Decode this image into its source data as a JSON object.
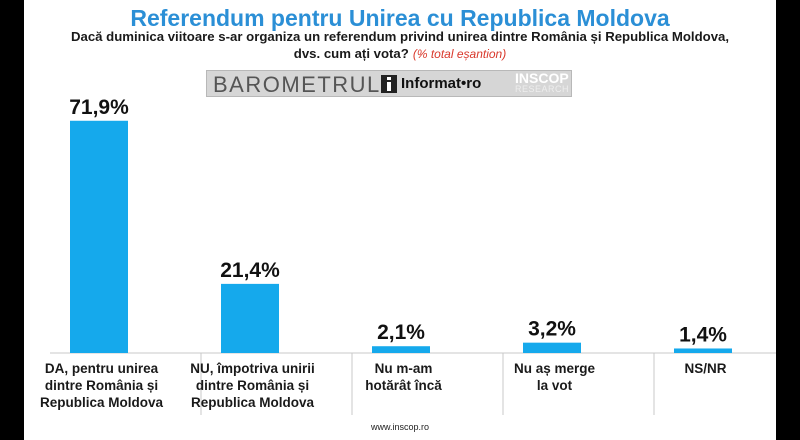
{
  "chart_data": {
    "type": "bar",
    "title": "Referendum pentru Unirea cu Republica Moldova",
    "subtitle": "Dacă duminica viitoare s-ar organiza un referendum privind unirea dintre România și Republica Moldova, dvs. cum ați vota?",
    "note": "(% total eșantion)",
    "categories": [
      "DA, pentru unirea dintre România și Republica Moldova",
      "NU, împotriva unirii dintre România și Republica Moldova",
      "Nu m-am hotărât încă",
      "Nu aș merge la vot",
      "NS/NR"
    ],
    "values": [
      71.9,
      21.4,
      2.1,
      3.2,
      1.4
    ],
    "value_labels": [
      "71,9%",
      "21,4%",
      "2,1%",
      "3,2%",
      "1,4%"
    ],
    "ylim": [
      0,
      100
    ],
    "grid": false,
    "bar_color": "#15a9ec"
  },
  "banner": {
    "barometer": "BAROMETRUL",
    "informat": "Informat•ro",
    "inscop": "INSCOP",
    "research": "RESEARCH"
  },
  "source": "www.inscop.ro"
}
